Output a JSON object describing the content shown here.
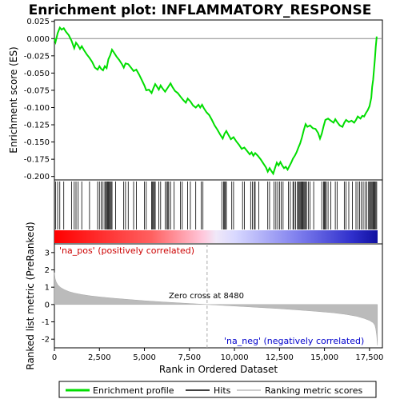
{
  "chart_data": {
    "type": "line",
    "title": "Enrichment plot: INFLAMMATORY_RESPONSE",
    "xlabel": "Rank in Ordered Dataset",
    "ylabel_top": "Enrichment score (ES)",
    "ylabel_bottom": "Ranked list metric (PreRanked)",
    "xlim": [
      0,
      17950
    ],
    "ylim_top": [
      -0.205,
      0.027
    ],
    "ylim_bottom": [
      -2.5,
      3.5
    ],
    "xticks": [
      0,
      2500,
      5000,
      7500,
      10000,
      12500,
      15000,
      17500
    ],
    "xtick_labels": [
      "0",
      "2,500",
      "5,000",
      "7,500",
      "10,000",
      "12,500",
      "15,000",
      "17,500"
    ],
    "yticks_top": [
      0.025,
      0.0,
      -0.025,
      -0.05,
      -0.075,
      -0.1,
      -0.125,
      -0.15,
      -0.175,
      -0.2
    ],
    "ytick_labels_top": [
      "0.025",
      "0.000",
      "-0.025",
      "-0.050",
      "-0.075",
      "-0.100",
      "-0.125",
      "-0.150",
      "-0.175",
      "-0.200"
    ],
    "yticks_bottom": [
      3,
      2,
      1,
      0,
      -1,
      -2
    ],
    "ytick_labels_bottom": [
      "3",
      "2",
      "1",
      "0",
      "-1",
      "-2"
    ],
    "zero_cross_label": "Zero cross at 8480",
    "zero_cross": 8480,
    "pos_label": "'na_pos' (positively correlated)",
    "neg_label": "'na_neg' (negatively correlated)",
    "legend": [
      "Enrichment profile",
      "Hits",
      "Ranking metric scores"
    ],
    "colors": {
      "profile": "#00dd00",
      "hits": "#000000",
      "metric": "#bbbbbb",
      "pos_label": "#cc0000",
      "neg_label": "#0000cc",
      "zero_line": "#aaaaaa"
    },
    "es_profile": [
      [
        0,
        0.0
      ],
      [
        60,
        -0.005
      ],
      [
        180,
        0.008
      ],
      [
        300,
        0.016
      ],
      [
        400,
        0.013
      ],
      [
        520,
        0.015
      ],
      [
        640,
        0.01
      ],
      [
        800,
        0.005
      ],
      [
        950,
        -0.003
      ],
      [
        1100,
        -0.014
      ],
      [
        1200,
        -0.006
      ],
      [
        1320,
        -0.01
      ],
      [
        1420,
        -0.015
      ],
      [
        1520,
        -0.011
      ],
      [
        1650,
        -0.017
      ],
      [
        1800,
        -0.023
      ],
      [
        1950,
        -0.028
      ],
      [
        2100,
        -0.034
      ],
      [
        2250,
        -0.042
      ],
      [
        2400,
        -0.045
      ],
      [
        2500,
        -0.04
      ],
      [
        2600,
        -0.044
      ],
      [
        2700,
        -0.046
      ],
      [
        2800,
        -0.04
      ],
      [
        2900,
        -0.043
      ],
      [
        3000,
        -0.03
      ],
      [
        3100,
        -0.024
      ],
      [
        3200,
        -0.016
      ],
      [
        3300,
        -0.02
      ],
      [
        3450,
        -0.026
      ],
      [
        3600,
        -0.031
      ],
      [
        3750,
        -0.037
      ],
      [
        3850,
        -0.042
      ],
      [
        3950,
        -0.036
      ],
      [
        4100,
        -0.037
      ],
      [
        4250,
        -0.042
      ],
      [
        4400,
        -0.047
      ],
      [
        4550,
        -0.045
      ],
      [
        4700,
        -0.052
      ],
      [
        4850,
        -0.06
      ],
      [
        5000,
        -0.068
      ],
      [
        5100,
        -0.075
      ],
      [
        5250,
        -0.074
      ],
      [
        5400,
        -0.079
      ],
      [
        5500,
        -0.072
      ],
      [
        5600,
        -0.066
      ],
      [
        5700,
        -0.07
      ],
      [
        5800,
        -0.074
      ],
      [
        5900,
        -0.068
      ],
      [
        6000,
        -0.072
      ],
      [
        6150,
        -0.077
      ],
      [
        6300,
        -0.071
      ],
      [
        6450,
        -0.065
      ],
      [
        6550,
        -0.07
      ],
      [
        6700,
        -0.076
      ],
      [
        6850,
        -0.079
      ],
      [
        7000,
        -0.084
      ],
      [
        7150,
        -0.089
      ],
      [
        7300,
        -0.093
      ],
      [
        7400,
        -0.087
      ],
      [
        7550,
        -0.091
      ],
      [
        7700,
        -0.097
      ],
      [
        7850,
        -0.1
      ],
      [
        8000,
        -0.096
      ],
      [
        8100,
        -0.1
      ],
      [
        8200,
        -0.096
      ],
      [
        8300,
        -0.101
      ],
      [
        8450,
        -0.107
      ],
      [
        8600,
        -0.111
      ],
      [
        8750,
        -0.118
      ],
      [
        8900,
        -0.126
      ],
      [
        9050,
        -0.132
      ],
      [
        9200,
        -0.139
      ],
      [
        9350,
        -0.145
      ],
      [
        9450,
        -0.138
      ],
      [
        9550,
        -0.134
      ],
      [
        9650,
        -0.139
      ],
      [
        9800,
        -0.146
      ],
      [
        9950,
        -0.143
      ],
      [
        10100,
        -0.149
      ],
      [
        10250,
        -0.154
      ],
      [
        10400,
        -0.16
      ],
      [
        10550,
        -0.158
      ],
      [
        10700,
        -0.163
      ],
      [
        10850,
        -0.168
      ],
      [
        10950,
        -0.165
      ],
      [
        11050,
        -0.17
      ],
      [
        11150,
        -0.166
      ],
      [
        11300,
        -0.17
      ],
      [
        11450,
        -0.175
      ],
      [
        11600,
        -0.181
      ],
      [
        11750,
        -0.187
      ],
      [
        11850,
        -0.193
      ],
      [
        11950,
        -0.188
      ],
      [
        12050,
        -0.192
      ],
      [
        12150,
        -0.196
      ],
      [
        12250,
        -0.188
      ],
      [
        12350,
        -0.18
      ],
      [
        12450,
        -0.184
      ],
      [
        12550,
        -0.179
      ],
      [
        12650,
        -0.184
      ],
      [
        12750,
        -0.188
      ],
      [
        12850,
        -0.186
      ],
      [
        12950,
        -0.19
      ],
      [
        13050,
        -0.185
      ],
      [
        13150,
        -0.18
      ],
      [
        13250,
        -0.174
      ],
      [
        13350,
        -0.17
      ],
      [
        13450,
        -0.165
      ],
      [
        13550,
        -0.158
      ],
      [
        13650,
        -0.152
      ],
      [
        13750,
        -0.143
      ],
      [
        13850,
        -0.133
      ],
      [
        13950,
        -0.124
      ],
      [
        14050,
        -0.128
      ],
      [
        14200,
        -0.126
      ],
      [
        14350,
        -0.13
      ],
      [
        14500,
        -0.131
      ],
      [
        14650,
        -0.137
      ],
      [
        14750,
        -0.145
      ],
      [
        14850,
        -0.138
      ],
      [
        14950,
        -0.127
      ],
      [
        15050,
        -0.118
      ],
      [
        15200,
        -0.116
      ],
      [
        15350,
        -0.119
      ],
      [
        15500,
        -0.122
      ],
      [
        15600,
        -0.117
      ],
      [
        15700,
        -0.121
      ],
      [
        15850,
        -0.126
      ],
      [
        16000,
        -0.128
      ],
      [
        16100,
        -0.122
      ],
      [
        16200,
        -0.118
      ],
      [
        16350,
        -0.121
      ],
      [
        16500,
        -0.119
      ],
      [
        16650,
        -0.122
      ],
      [
        16750,
        -0.118
      ],
      [
        16850,
        -0.113
      ],
      [
        17000,
        -0.116
      ],
      [
        17100,
        -0.112
      ],
      [
        17200,
        -0.113
      ],
      [
        17300,
        -0.108
      ],
      [
        17400,
        -0.104
      ],
      [
        17500,
        -0.098
      ],
      [
        17600,
        -0.086
      ],
      [
        17650,
        -0.07
      ],
      [
        17700,
        -0.06
      ],
      [
        17750,
        -0.045
      ],
      [
        17800,
        -0.03
      ],
      [
        17850,
        -0.012
      ],
      [
        17900,
        0.003
      ]
    ],
    "hits": [
      60,
      180,
      300,
      520,
      950,
      1100,
      1200,
      1320,
      1520,
      1950,
      2400,
      2500,
      2600,
      2700,
      2800,
      2850,
      2900,
      2950,
      3000,
      3050,
      3100,
      3150,
      3200,
      3400,
      3850,
      3950,
      4100,
      4400,
      4550,
      5000,
      5100,
      5400,
      5450,
      5500,
      5550,
      5600,
      5800,
      5900,
      6150,
      6250,
      6300,
      6350,
      6450,
      6650,
      7000,
      7100,
      7400,
      7550,
      7850,
      8150,
      8250,
      9300,
      9400,
      9450,
      9500,
      9550,
      9850,
      9950,
      10450,
      10550,
      10900,
      11000,
      11100,
      11150,
      11350,
      11850,
      11950,
      12200,
      12300,
      12400,
      12500,
      12600,
      12700,
      13000,
      13100,
      13250,
      13300,
      13400,
      13500,
      13550,
      13600,
      13650,
      13700,
      13750,
      13800,
      13850,
      13900,
      13950,
      14000,
      14100,
      14200,
      14400,
      14850,
      14950,
      15000,
      15050,
      15100,
      15200,
      15350,
      15600,
      15700,
      16100,
      16200,
      16350,
      16550,
      16750,
      16850,
      16950,
      17050,
      17150,
      17250,
      17350,
      17450,
      17500,
      17550,
      17600,
      17650,
      17700,
      17750,
      17800,
      17850,
      17900
    ],
    "metric_curve": [
      [
        0,
        1.85
      ],
      [
        40,
        1.5
      ],
      [
        100,
        1.3
      ],
      [
        200,
        1.12
      ],
      [
        350,
        0.98
      ],
      [
        550,
        0.86
      ],
      [
        800,
        0.75
      ],
      [
        1100,
        0.66
      ],
      [
        1500,
        0.58
      ],
      [
        2000,
        0.5
      ],
      [
        2600,
        0.43
      ],
      [
        3300,
        0.36
      ],
      [
        4000,
        0.3
      ],
      [
        5000,
        0.22
      ],
      [
        6000,
        0.15
      ],
      [
        7000,
        0.09
      ],
      [
        8000,
        0.03
      ],
      [
        8480,
        0.0
      ],
      [
        9500,
        -0.06
      ],
      [
        10500,
        -0.12
      ],
      [
        11500,
        -0.18
      ],
      [
        12500,
        -0.24
      ],
      [
        13500,
        -0.31
      ],
      [
        14500,
        -0.39
      ],
      [
        15500,
        -0.48
      ],
      [
        16200,
        -0.57
      ],
      [
        16800,
        -0.68
      ],
      [
        17200,
        -0.8
      ],
      [
        17500,
        -0.92
      ],
      [
        17700,
        -1.05
      ],
      [
        17800,
        -1.2
      ],
      [
        17850,
        -1.4
      ],
      [
        17900,
        -1.8
      ],
      [
        17940,
        -2.35
      ]
    ]
  }
}
